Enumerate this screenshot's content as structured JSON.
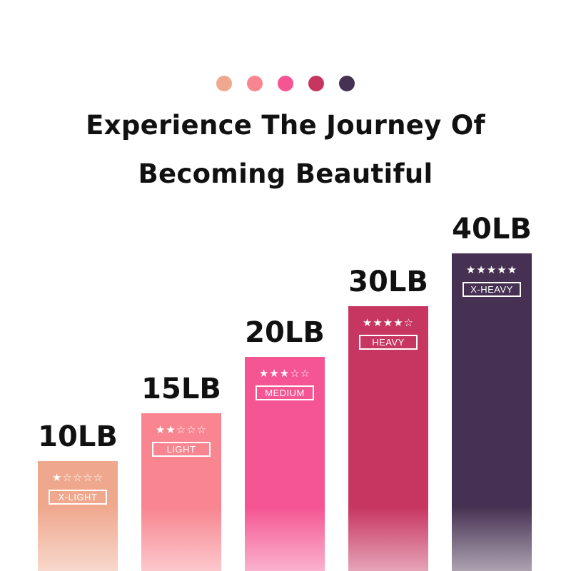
{
  "header": {
    "dot_colors": [
      "#efa88e",
      "#f8858f",
      "#f55592",
      "#c73561",
      "#473152"
    ],
    "title_line1": "Experience The Journey Of",
    "title_line2": "Becoming Beautiful"
  },
  "chart_data": {
    "type": "bar",
    "categories": [
      "X-LIGHT",
      "LIGHT",
      "MEDIUM",
      "HEAVY",
      "X-HEAVY"
    ],
    "values": [
      10,
      15,
      20,
      30,
      40
    ],
    "value_labels": [
      "10LB",
      "15LB",
      "20LB",
      "30LB",
      "40LB"
    ],
    "stars": [
      1,
      2,
      3,
      4,
      5
    ],
    "star_text": [
      "★☆☆☆☆",
      "★★☆☆☆",
      "★★★☆☆",
      "★★★★☆",
      "★★★★★"
    ],
    "colors": [
      "#efa88e",
      "#f8858f",
      "#f55592",
      "#c73561",
      "#473152"
    ],
    "unit": "LB"
  }
}
